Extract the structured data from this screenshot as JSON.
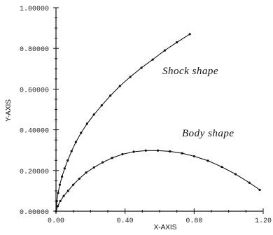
{
  "chart_data": {
    "type": "line",
    "xlabel": "X-AXIS",
    "ylabel": "Y-AXIS",
    "xlim": [
      0,
      1.2
    ],
    "ylim": [
      0,
      1.0
    ],
    "x_ticks": [
      "0.00",
      "0.40",
      "0.80",
      "1.20"
    ],
    "y_ticks": [
      "0.00000",
      "0.20000",
      "0.40000",
      "0.60000",
      "0.80000",
      "1.00000"
    ],
    "grid": false,
    "series": [
      {
        "name": "Shock shape",
        "color": "#111111",
        "x": [
          0.0,
          0.005,
          0.012,
          0.022,
          0.035,
          0.05,
          0.068,
          0.09,
          0.115,
          0.145,
          0.18,
          0.22,
          0.265,
          0.315,
          0.37,
          0.43,
          0.495,
          0.56,
          0.63,
          0.7,
          0.775
        ],
        "y": [
          0.0,
          0.05,
          0.09,
          0.13,
          0.17,
          0.21,
          0.25,
          0.295,
          0.34,
          0.385,
          0.43,
          0.475,
          0.52,
          0.568,
          0.615,
          0.66,
          0.705,
          0.745,
          0.79,
          0.83,
          0.87
        ]
      },
      {
        "name": "Body shape",
        "color": "#111111",
        "x": [
          0.0,
          0.01,
          0.025,
          0.045,
          0.07,
          0.1,
          0.135,
          0.175,
          0.22,
          0.27,
          0.325,
          0.385,
          0.45,
          0.52,
          0.59,
          0.66,
          0.73,
          0.8,
          0.88,
          0.96,
          1.04,
          1.12,
          1.18
        ],
        "y": [
          0.0,
          0.025,
          0.05,
          0.075,
          0.1,
          0.13,
          0.16,
          0.19,
          0.215,
          0.24,
          0.262,
          0.28,
          0.292,
          0.298,
          0.298,
          0.294,
          0.285,
          0.27,
          0.248,
          0.218,
          0.182,
          0.14,
          0.105
        ]
      }
    ],
    "annotations": [
      "Shock shape",
      "Body shape"
    ]
  }
}
